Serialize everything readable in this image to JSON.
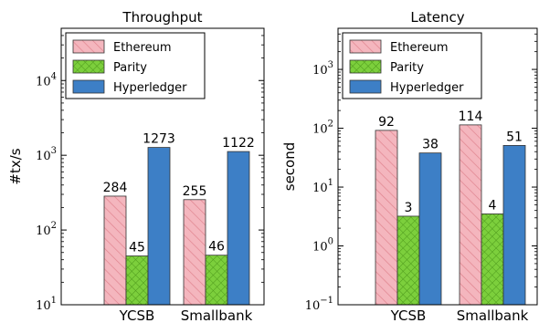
{
  "chart_data": [
    {
      "type": "bar",
      "title": "Throughput",
      "ylabel": "#tx/s",
      "yscale": "log",
      "ylim": [
        10,
        50000
      ],
      "yticks": [
        {
          "value": 10,
          "base": "10",
          "exp": "1"
        },
        {
          "value": 100,
          "base": "10",
          "exp": "2"
        },
        {
          "value": 1000,
          "base": "10",
          "exp": "3"
        },
        {
          "value": 10000,
          "base": "10",
          "exp": "4"
        }
      ],
      "categories": [
        "YCSB",
        "Smallbank"
      ],
      "series": [
        {
          "name": "Ethereum",
          "values": [
            284,
            255
          ],
          "labels": [
            "284",
            "255"
          ]
        },
        {
          "name": "Parity",
          "values": [
            45,
            46
          ],
          "labels": [
            "45",
            "46"
          ]
        },
        {
          "name": "Hyperledger",
          "values": [
            1273,
            1122
          ],
          "labels": [
            "1273",
            "1122"
          ]
        }
      ],
      "legend": "top-left"
    },
    {
      "type": "bar",
      "title": "Latency",
      "ylabel": "second",
      "yscale": "log",
      "ylim": [
        0.1,
        5000
      ],
      "yticks": [
        {
          "value": 0.1,
          "base": "10",
          "exp": "−1"
        },
        {
          "value": 1,
          "base": "10",
          "exp": "0"
        },
        {
          "value": 10,
          "base": "10",
          "exp": "1"
        },
        {
          "value": 100,
          "base": "10",
          "exp": "2"
        },
        {
          "value": 1000,
          "base": "10",
          "exp": "3"
        }
      ],
      "categories": [
        "YCSB",
        "Smallbank"
      ],
      "series": [
        {
          "name": "Ethereum",
          "values": [
            92,
            114
          ],
          "labels": [
            "92",
            "114"
          ]
        },
        {
          "name": "Parity",
          "values": [
            3.2,
            3.5
          ],
          "labels": [
            "3",
            "4"
          ]
        },
        {
          "name": "Hyperledger",
          "values": [
            38,
            51
          ],
          "labels": [
            "38",
            "51"
          ]
        }
      ],
      "legend": "top-left"
    }
  ],
  "colors": {
    "Ethereum": "#f4b6be",
    "Parity": "#7ccf3c",
    "Hyperledger": "#3d7fc6"
  },
  "patterns": {
    "Ethereum": "diagonal-hatch",
    "Parity": "cross-hatch",
    "Hyperledger": "none"
  }
}
